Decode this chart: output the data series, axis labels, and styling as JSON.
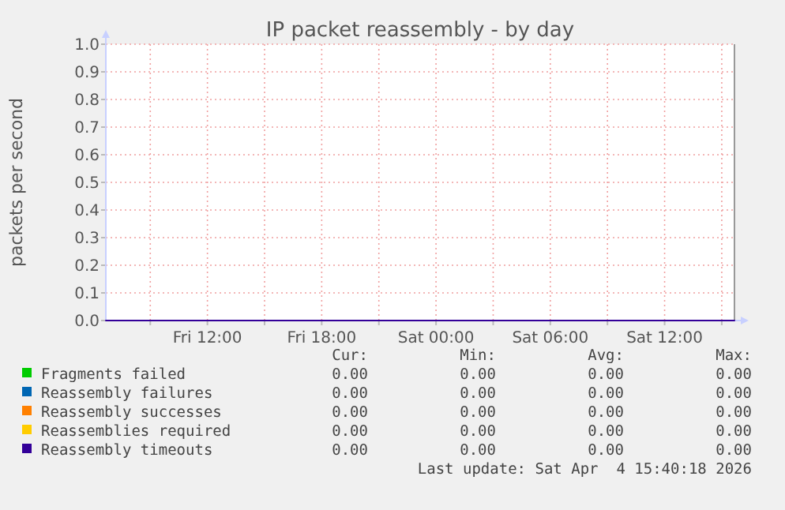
{
  "chart_data": {
    "type": "line",
    "title": "IP packet reassembly - by day",
    "ylabel": "packets per second",
    "xlim": [
      "2026-04-03T06:40",
      "2026-04-04T15:40"
    ],
    "xticks": [
      {
        "value": "2026-04-03T09:00",
        "label": null
      },
      {
        "value": "2026-04-03T12:00",
        "label": "Fri 12:00"
      },
      {
        "value": "2026-04-03T15:00",
        "label": null
      },
      {
        "value": "2026-04-03T18:00",
        "label": "Fri 18:00"
      },
      {
        "value": "2026-04-03T21:00",
        "label": null
      },
      {
        "value": "2026-04-04T00:00",
        "label": "Sat 00:00"
      },
      {
        "value": "2026-04-04T03:00",
        "label": null
      },
      {
        "value": "2026-04-04T06:00",
        "label": "Sat 06:00"
      },
      {
        "value": "2026-04-04T09:00",
        "label": null
      },
      {
        "value": "2026-04-04T12:00",
        "label": "Sat 12:00"
      },
      {
        "value": "2026-04-04T15:00",
        "label": null
      }
    ],
    "ylim": [
      0,
      1
    ],
    "yticks": [
      {
        "value": 0,
        "label": "0.0"
      },
      {
        "value": 0.1,
        "label": "0.1"
      },
      {
        "value": 0.2,
        "label": "0.2"
      },
      {
        "value": 0.3,
        "label": "0.3"
      },
      {
        "value": 0.4,
        "label": "0.4"
      },
      {
        "value": 0.5,
        "label": "0.5"
      },
      {
        "value": 0.6,
        "label": "0.6"
      },
      {
        "value": 0.7,
        "label": "0.7"
      },
      {
        "value": 0.8,
        "label": "0.8"
      },
      {
        "value": 0.9,
        "label": "0.9"
      },
      {
        "value": 1,
        "label": "1.0"
      }
    ],
    "grid": true,
    "legend": "bottom",
    "marker": "none",
    "line_style": "solid",
    "x": [
      "2026-04-03T06:40",
      "2026-04-04T15:40"
    ],
    "series": [
      {
        "name": "Fragments failed",
        "color": "#00cc00",
        "values": [
          null,
          null
        ]
      },
      {
        "name": "Reassembly failures",
        "color": "#0066b3",
        "values": [
          null,
          null
        ]
      },
      {
        "name": "Reassembly successes",
        "color": "#ff8000",
        "values": [
          null,
          null
        ]
      },
      {
        "name": "Reassemblies required",
        "color": "#ffcc00",
        "values": [
          null,
          null
        ]
      },
      {
        "name": "Reassembly timeouts",
        "color": "#330099",
        "values": [
          0,
          0
        ]
      }
    ],
    "annotations": [
      "Cur:",
      "Min:",
      "Avg:",
      "Max:",
      "0.00",
      "0.00",
      "0.00",
      "0.00",
      "0.00",
      "0.00",
      "0.00",
      "0.00",
      "0.00",
      "0.00",
      "0.00",
      "0.00",
      "0.00",
      "0.00",
      "0.00",
      "0.00",
      "0.00",
      "0.00",
      "0.00",
      "0.00",
      "Last update: Sat Apr  4 15:40:18 2026"
    ]
  }
}
